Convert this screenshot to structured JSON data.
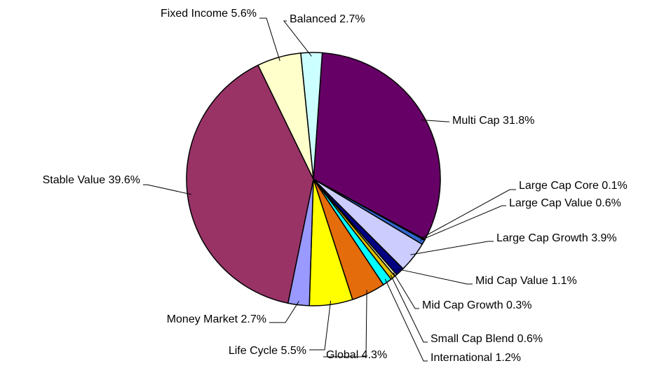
{
  "chart_data": {
    "type": "pie",
    "categories": [
      "Multi Cap",
      "Large Cap Core",
      "Large Cap Value",
      "Large Cap Growth",
      "Mid Cap Value",
      "Mid Cap Growth",
      "Small Cap Blend",
      "International",
      "Global",
      "Life Cycle",
      "Money Market",
      "Stable Value",
      "Fixed Income",
      "Balanced"
    ],
    "values": [
      31.8,
      0.1,
      0.6,
      3.9,
      1.1,
      0.3,
      0.6,
      1.2,
      4.3,
      5.5,
      2.7,
      39.6,
      5.6,
      2.7
    ],
    "value_labels": [
      "31.8%",
      "0.1%",
      "0.6%",
      "3.9%",
      "1.1%",
      "0.3%",
      "0.6%",
      "1.2%",
      "4.3%",
      "5.5%",
      "2.7%",
      "39.6%",
      "5.6%",
      "2.7%"
    ],
    "colors": [
      "#660066",
      "#0066cc",
      "#3366cc",
      "#ccccff",
      "#000080",
      "#ffffcc",
      "#e0c000",
      "#00ffff",
      "#e46c0a",
      "#ffff00",
      "#9999ff",
      "#993366",
      "#ffffcc",
      "#ccffff"
    ]
  }
}
